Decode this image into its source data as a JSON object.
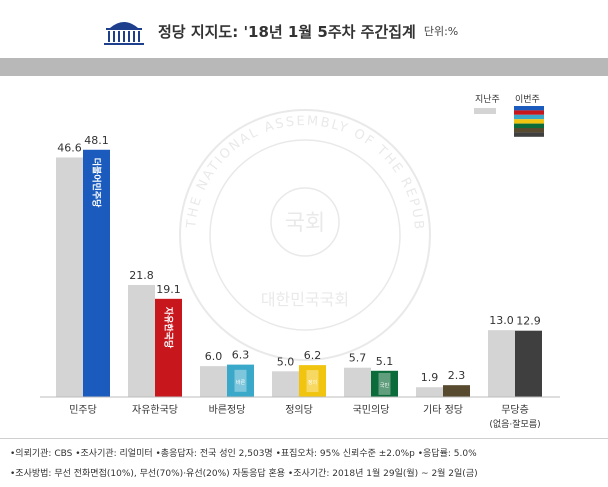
{
  "header": {
    "title": "정당 지지도: '18년 1월 5주차 주간집계",
    "unit": "단위:%",
    "icon": "national-assembly-icon"
  },
  "legend": {
    "last_week": "지난주",
    "this_week": "이번주"
  },
  "watermark": {
    "ring_text": "THE NATIONAL ASSEMBLY OF THE REPUBLIC OF KOREA",
    "center_text": "국회",
    "bottom_text": "대한민국국회"
  },
  "party_logos": [
    "더불어민주당",
    "자유한국당",
    "바른정당",
    "정의당",
    "국민의당"
  ],
  "chart_data": {
    "type": "bar",
    "categories": [
      "민주당",
      "자유한국당",
      "바른정당",
      "정의당",
      "국민의당",
      "기타 정당",
      "무당층"
    ],
    "category_sublabels": [
      "",
      "",
      "",
      "",
      "",
      "",
      "(없음·잘모름)"
    ],
    "series": [
      {
        "name": "지난주",
        "values": [
          46.6,
          21.8,
          6.0,
          5.0,
          5.7,
          1.9,
          13.0
        ]
      },
      {
        "name": "이번주",
        "values": [
          48.1,
          19.1,
          6.3,
          6.2,
          5.1,
          2.3,
          12.9
        ]
      }
    ],
    "value_labels": {
      "last_week": [
        "46.6",
        "21.8",
        "6.0",
        "5.0",
        "5.7",
        "1.9",
        "13.0"
      ],
      "this_week": [
        "48.1",
        "19.1",
        "6.3",
        "6.2",
        "5.1",
        "2.3",
        "12.9"
      ]
    },
    "colors": {
      "last_week": "#d4d4d4",
      "this_week": [
        "#1a5bbd",
        "#c8161d",
        "#39a8c9",
        "#f1c40f",
        "#0b6b3a",
        "#574a2e",
        "#3f3f3f"
      ]
    },
    "ylim": [
      0,
      50
    ]
  },
  "footer": {
    "line1": "•의뢰기관: CBS •조사기관: 리얼미터 •총응답자: 전국 성인 2,503명 •표집오차: 95% 신뢰수준 ±2.0%p •응답률: 5.0%",
    "line2": "•조사방법: 무선 전화면접(10%), 무선(70%)·유선(20%) 자동응답 혼용 •조사기간: 2018년 1월 29일(월) ~ 2월 2일(금)"
  }
}
